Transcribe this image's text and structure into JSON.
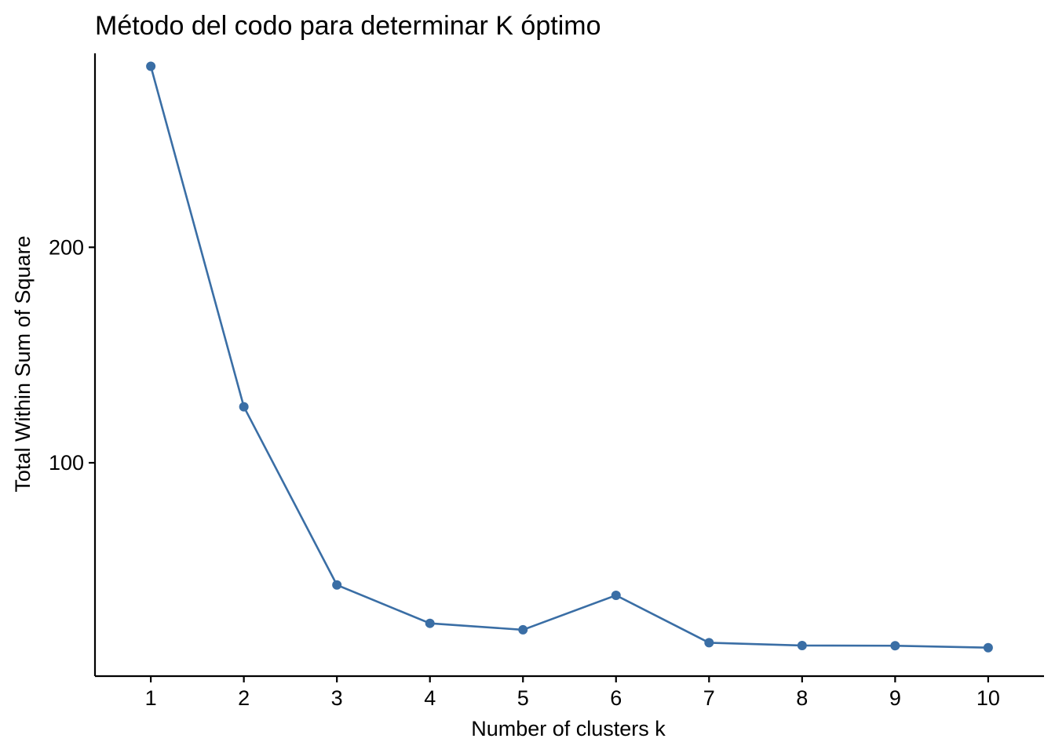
{
  "chart_data": {
    "type": "line",
    "title": "Método del codo para determinar K óptimo",
    "xlabel": "Number of clusters k",
    "ylabel": "Total Within Sum of Square",
    "x": [
      1,
      2,
      3,
      4,
      5,
      6,
      7,
      8,
      9,
      10
    ],
    "x_tick_labels": [
      "1",
      "2",
      "3",
      "4",
      "5",
      "6",
      "7",
      "8",
      "9",
      "10"
    ],
    "y_ticks": [
      100,
      200
    ],
    "y_tick_labels": [
      "100",
      "200"
    ],
    "xlim": [
      0.4,
      10.6
    ],
    "ylim": [
      1,
      290
    ],
    "series": [
      {
        "values": [
          284,
          126,
          43.3,
          25.5,
          22.5,
          38.5,
          16.5,
          15.2,
          15.1,
          14.2
        ],
        "color": "#3A6EA5"
      }
    ],
    "grid": false,
    "legend": "none"
  }
}
